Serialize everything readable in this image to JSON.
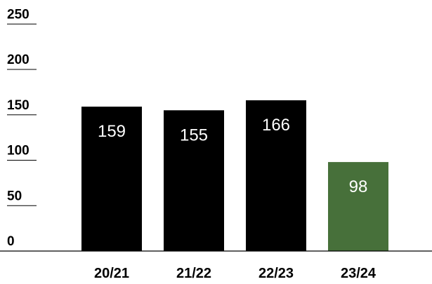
{
  "chart_data": {
    "type": "bar",
    "categories": [
      "20/21",
      "21/22",
      "22/23",
      "23/24"
    ],
    "values": [
      159,
      155,
      166,
      98
    ],
    "data_labels": [
      "159",
      "155",
      "166",
      "98"
    ],
    "ylim": [
      0,
      250
    ],
    "yticks": [
      0,
      50,
      100,
      150,
      200,
      250
    ],
    "ytick_labels": [
      "0",
      "50",
      "100",
      "150",
      "200",
      "250"
    ],
    "bar_colors": [
      "#000000",
      "#000000",
      "#000000",
      "#47703a"
    ],
    "label_color": "#ffffff",
    "title": "",
    "xlabel": "",
    "ylabel": "",
    "grid": false,
    "legend": false
  }
}
